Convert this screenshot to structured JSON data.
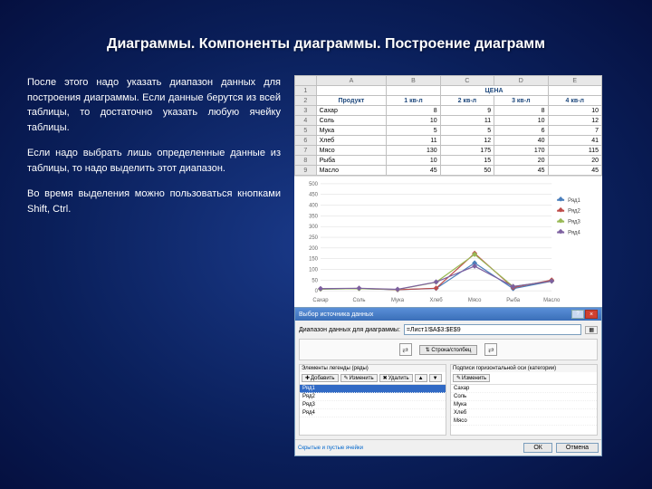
{
  "title": "Диаграммы. Компоненты диаграммы. Построение диаграмм",
  "paragraphs": [
    "После этого надо указать диапазон данных для построения диаграммы. Если данные берутся из всей таблицы, то достаточно указать любую ячейку таблицы.",
    "Если надо выбрать лишь определенные данные из таблицы, то надо выделить этот диапазон.",
    "Во время выделения можно пользоваться кнопками Shift, Ctrl."
  ],
  "spreadsheet": {
    "title_cell": "ЦЕНА",
    "col_letters": [
      "A",
      "B",
      "C",
      "D",
      "E"
    ],
    "row_numbers": [
      "1",
      "2",
      "3",
      "4",
      "5",
      "6",
      "7",
      "8",
      "9"
    ],
    "header": [
      "Продукт",
      "1 кв-л",
      "2 кв-л",
      "3 кв-л",
      "4 кв-л"
    ],
    "rows": [
      [
        "Сахар",
        "8",
        "9",
        "8",
        "10"
      ],
      [
        "Соль",
        "10",
        "11",
        "10",
        "12"
      ],
      [
        "Мука",
        "5",
        "5",
        "6",
        "7"
      ],
      [
        "Хлеб",
        "11",
        "12",
        "40",
        "41"
      ],
      [
        "Мясо",
        "130",
        "175",
        "170",
        "115"
      ],
      [
        "Рыба",
        "10",
        "15",
        "20",
        "20"
      ],
      [
        "Масло",
        "45",
        "50",
        "45",
        "45"
      ]
    ]
  },
  "chart": {
    "type": "line",
    "categories": [
      "Сахар",
      "Соль",
      "Мука",
      "Хлеб",
      "Мясо",
      "Рыба",
      "Масло"
    ],
    "series": [
      {
        "name": "Ряд1",
        "color": "#4a7ebb",
        "values": [
          8,
          10,
          5,
          11,
          130,
          10,
          45
        ]
      },
      {
        "name": "Ряд2",
        "color": "#be4b48",
        "values": [
          9,
          11,
          5,
          12,
          175,
          15,
          50
        ]
      },
      {
        "name": "Ряд3",
        "color": "#98b954",
        "values": [
          8,
          10,
          6,
          40,
          170,
          20,
          45
        ]
      },
      {
        "name": "Ряд4",
        "color": "#7d60a0",
        "values": [
          10,
          12,
          7,
          41,
          115,
          20,
          45
        ]
      }
    ],
    "ylim": [
      0,
      500
    ],
    "yticks": [
      0,
      50,
      100,
      150,
      200,
      250,
      300,
      350,
      400,
      450,
      500
    ],
    "grid_color": "#d9d9d9",
    "background_color": "#ffffff",
    "marker": "diamond",
    "marker_size": 3,
    "line_width": 1.2,
    "label_fontsize": 6
  },
  "dialog": {
    "title": "Выбор источника данных",
    "close_label": "×",
    "help_label": "?",
    "range_label": "Диапазон данных для диаграммы:",
    "range_value": "=Лист1!$A$3:$E$9",
    "swap_button": "Строка/столбец",
    "left_panel_title": "Элементы легенды (ряды)",
    "right_panel_title": "Подписи горизонтальной оси (категории)",
    "add_btn": "Добавить",
    "edit_btn": "Изменить",
    "delete_btn": "Удалить",
    "edit_btn2": "Изменить",
    "series_list": [
      "Ряд1",
      "Ряд2",
      "Ряд3",
      "Ряд4"
    ],
    "category_list": [
      "Сахар",
      "Соль",
      "Мука",
      "Хлеб",
      "Мясо"
    ],
    "footer_link": "Скрытые и пустые ячейки",
    "ok_btn": "ОК",
    "cancel_btn": "Отмена"
  }
}
